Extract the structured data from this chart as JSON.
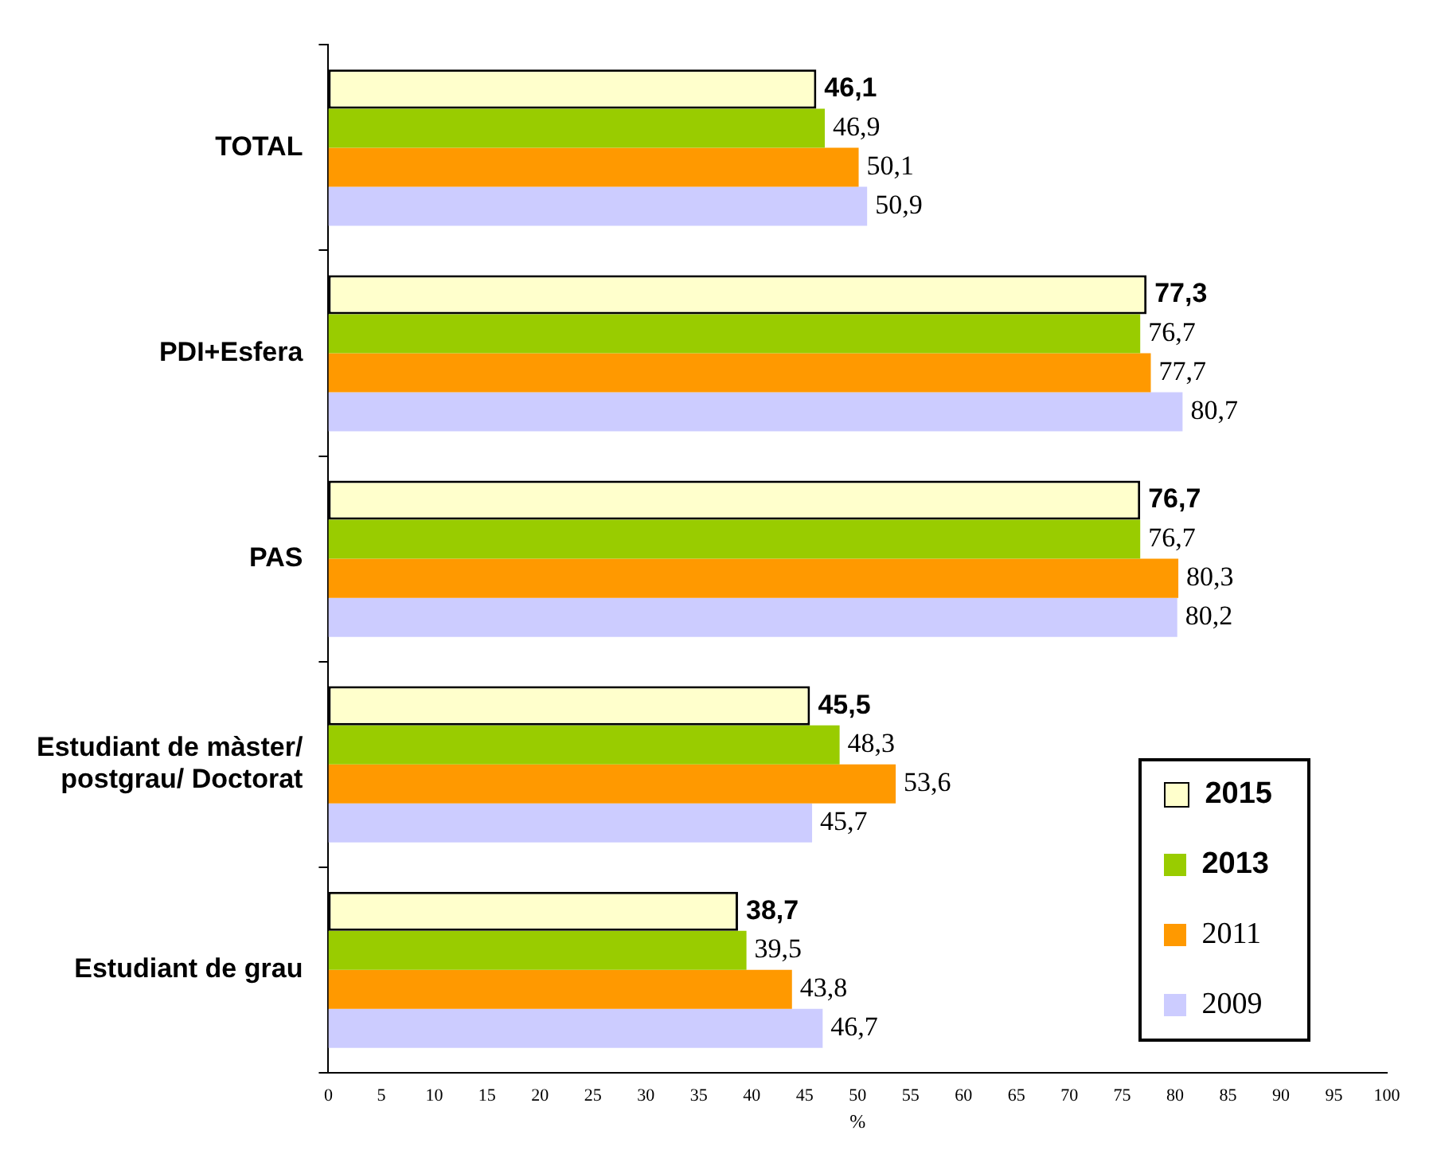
{
  "chart_data": {
    "type": "bar",
    "orientation": "horizontal",
    "xlabel": "%",
    "categories": [
      "TOTAL",
      "PDI+Esfera",
      "PAS",
      "Estudiant de màster/ postgrau/ Doctorat",
      "Estudiant de grau"
    ],
    "series": [
      {
        "name": "2015",
        "color": "#ffffcc",
        "values": [
          46.1,
          77.3,
          76.7,
          45.5,
          38.7
        ],
        "value_labels": [
          "46,1",
          "77,3",
          "76,7",
          "45,5",
          "38,7"
        ]
      },
      {
        "name": "2013",
        "color": "#99cc00",
        "values": [
          46.9,
          76.7,
          76.7,
          48.3,
          39.5
        ],
        "value_labels": [
          "46,9",
          "76,7",
          "76,7",
          "48,3",
          "39,5"
        ]
      },
      {
        "name": "2011",
        "color": "#ff9900",
        "values": [
          50.1,
          77.7,
          80.3,
          53.6,
          43.8
        ],
        "value_labels": [
          "50,1",
          "77,7",
          "80,3",
          "53,6",
          "43,8"
        ]
      },
      {
        "name": "2009",
        "color": "#ccccff",
        "values": [
          50.9,
          80.7,
          80.2,
          45.7,
          46.7
        ],
        "value_labels": [
          "50,9",
          "80,7",
          "80,2",
          "45,7",
          "46,7"
        ]
      }
    ],
    "xlim": [
      0,
      100
    ],
    "xticks": [
      0,
      5,
      10,
      15,
      20,
      25,
      30,
      35,
      40,
      45,
      50,
      55,
      60,
      65,
      70,
      75,
      80,
      85,
      90,
      95,
      100
    ],
    "grid": false,
    "legend": "bottom right"
  }
}
